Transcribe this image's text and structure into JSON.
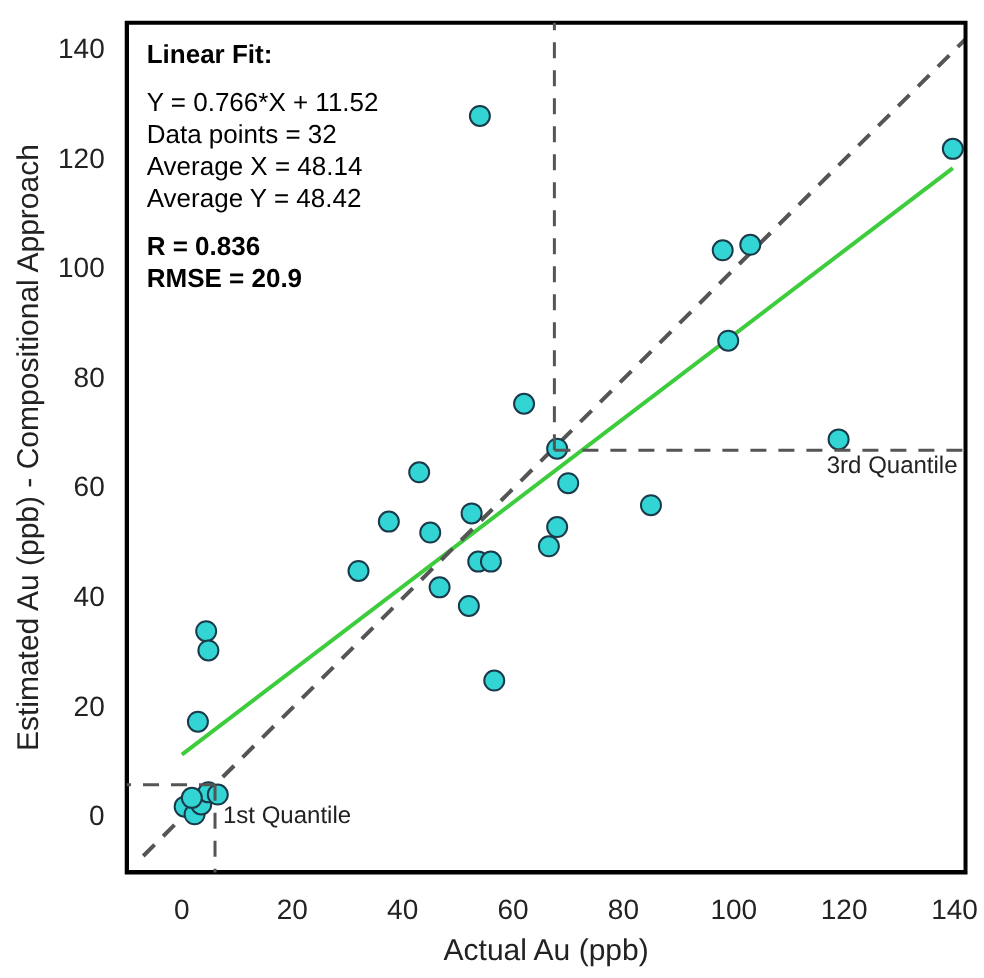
{
  "chart_data": {
    "type": "scatter",
    "xlabel": "Actual Au (ppb)",
    "ylabel": "Estimated Au (ppb) - Compositional Approach",
    "xlim": [
      -10,
      142
    ],
    "ylim": [
      -10,
      145
    ],
    "xticks": [
      0,
      20,
      40,
      60,
      80,
      100,
      120,
      140
    ],
    "yticks": [
      0,
      20,
      40,
      60,
      80,
      100,
      120,
      140
    ],
    "grid": false,
    "legend": false,
    "marker": "circle",
    "series": [
      {
        "type": "line",
        "color": "#555555",
        "line_style": "dashed",
        "marker": "none",
        "x": [
          -7,
          142
        ],
        "values": [
          -7,
          142
        ]
      },
      {
        "type": "line",
        "color": "#3ccc3c",
        "line_style": "solid",
        "marker": "none",
        "x": [
          0,
          139.7
        ],
        "values": [
          11.5,
          118.5
        ]
      },
      {
        "color": "#33d4d4",
        "x": [
          54,
          139.7,
          98,
          103,
          99,
          62,
          68,
          119,
          70,
          85,
          52.5,
          68,
          66.5,
          53.7,
          56,
          52,
          56.6,
          37.5,
          45,
          32,
          46.7,
          43,
          4.4,
          4.8,
          2.9,
          0.5,
          2.3,
          3.5,
          4.8,
          6.5,
          1.8
        ],
        "values": [
          128,
          122,
          103.5,
          104.5,
          87,
          75.5,
          67.3,
          69,
          61,
          57,
          55.5,
          53,
          49.5,
          46.7,
          46.7,
          38.6,
          25,
          54,
          52,
          45,
          42,
          63,
          34,
          30.5,
          17.5,
          2,
          0.6,
          2.4,
          4.6,
          4.2,
          3.6
        ]
      }
    ],
    "ref_lines": [
      {
        "axis": "x",
        "value": 67.5,
        "color": "#555555",
        "line_style": "dashed"
      },
      {
        "axis": "y",
        "value": 67,
        "label": "3rd Quantile",
        "color": "#555555",
        "line_style": "dashed"
      },
      {
        "axis": "x",
        "value": 6,
        "label": "1st Quantile",
        "color": "#555555",
        "line_style": "dashed"
      },
      {
        "axis": "y",
        "value": 6,
        "color": "#555555",
        "line_style": "dashed"
      }
    ],
    "annotations": [
      "Linear Fit:",
      "Y = 0.766*X + 11.52",
      "Data points = 32",
      "Average X = 48.14",
      "Average Y = 48.42",
      "R = 0.836",
      "RMSE = 20.9"
    ]
  }
}
